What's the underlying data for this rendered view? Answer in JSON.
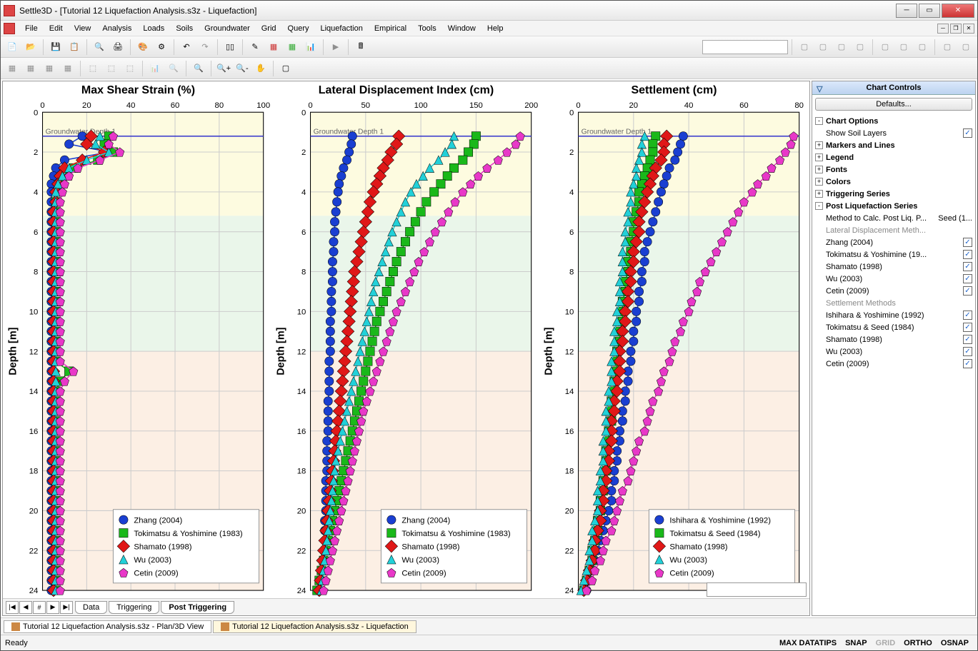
{
  "window": {
    "title": "Settle3D - [Tutorial 12 Liquefaction Analysis.s3z - Liquefaction]"
  },
  "menu": [
    "File",
    "Edit",
    "View",
    "Analysis",
    "Loads",
    "Soils",
    "Groundwater",
    "Grid",
    "Query",
    "Liquefaction",
    "Empirical",
    "Tools",
    "Window",
    "Help"
  ],
  "tabs": {
    "items": [
      "Data",
      "Triggering",
      "Post Triggering"
    ],
    "active": 2
  },
  "doctabs": {
    "items": [
      "Tutorial 12 Liquefaction Analysis.s3z - Plan/3D View",
      "Tutorial 12 Liquefaction Analysis.s3z - Liquefaction"
    ],
    "active": 1
  },
  "status": {
    "ready": "Ready",
    "items": [
      "MAX DATATIPS",
      "SNAP",
      "GRID",
      "ORTHO",
      "OSNAP"
    ],
    "gray_index": 2
  },
  "side": {
    "title": "Chart Controls",
    "defaults": "Defaults...",
    "sections": [
      {
        "exp": "-",
        "label": "Chart Options",
        "bold": true
      },
      {
        "indent": 1,
        "label": "Show Soil Layers",
        "check": true
      },
      {
        "exp": "+",
        "label": "Markers and Lines",
        "bold": true
      },
      {
        "exp": "+",
        "label": "Legend",
        "bold": true
      },
      {
        "exp": "+",
        "label": "Fonts",
        "bold": true
      },
      {
        "exp": "+",
        "label": "Colors",
        "bold": true
      },
      {
        "exp": "+",
        "label": "Triggering Series",
        "bold": true
      },
      {
        "exp": "-",
        "label": "Post Liquefaction Series",
        "bold": true
      },
      {
        "indent": 1,
        "label": "Method to Calc. Post Liq. P...",
        "value": "Seed (1..."
      },
      {
        "indent": 1,
        "label": "Lateral Displacement Meth...",
        "gray": true
      },
      {
        "indent": 1,
        "label": "Zhang (2004)",
        "check": true
      },
      {
        "indent": 1,
        "label": "Tokimatsu & Yoshimine (19...",
        "check": true
      },
      {
        "indent": 1,
        "label": "Shamato (1998)",
        "check": true
      },
      {
        "indent": 1,
        "label": "Wu (2003)",
        "check": true
      },
      {
        "indent": 1,
        "label": "Cetin (2009)",
        "check": true
      },
      {
        "indent": 1,
        "label": "Settlement Methods",
        "gray": true
      },
      {
        "indent": 1,
        "label": "Ishihara & Yoshimine (1992)",
        "check": true
      },
      {
        "indent": 1,
        "label": "Tokimatsu & Seed (1984)",
        "check": true
      },
      {
        "indent": 1,
        "label": "Shamato (1998)",
        "check": true
      },
      {
        "indent": 1,
        "label": "Wu (2003)",
        "check": true
      },
      {
        "indent": 1,
        "label": "Cetin (2009)",
        "check": true
      }
    ]
  },
  "chart_common": {
    "ylabel": "Depth [m]",
    "y_min": 0,
    "y_max": 24,
    "y_tick": 2,
    "gw_label": "Groundwater Depth 1",
    "gw_depth": 1.2,
    "soil_bands": [
      {
        "from": 0,
        "to": 5.2,
        "color": "#fdfbe0"
      },
      {
        "from": 5.2,
        "to": 12,
        "color": "#eaf6ea"
      },
      {
        "from": 12,
        "to": 24,
        "color": "#fcefe4"
      }
    ],
    "grid_color": "#cccccc",
    "axis_color": "#000000",
    "title_fontsize": 16,
    "label_fontsize": 12,
    "gw_line_color": "#3333cc"
  },
  "series_colors": {
    "zhang": "#1a3fd1",
    "tokimatsu": "#1ab81a",
    "shamato": "#e01818",
    "wu": "#22d0d8",
    "cetin": "#e838c8",
    "ishihara": "#1a3fd1"
  },
  "markers": {
    "zhang": "circle",
    "tokimatsu": "square",
    "shamato": "diamond",
    "wu": "triangle",
    "cetin": "pentagon",
    "ishihara": "circle"
  },
  "depths": [
    1.2,
    1.6,
    2.0,
    2.4,
    2.8,
    3.2,
    3.6,
    4.0,
    4.5,
    5.0,
    5.5,
    6.0,
    6.5,
    7.0,
    7.5,
    8.0,
    8.5,
    9.0,
    9.5,
    10.0,
    10.5,
    11.0,
    11.5,
    12.0,
    12.5,
    13.0,
    13.5,
    14.0,
    14.5,
    15.0,
    15.5,
    16.0,
    16.5,
    17.0,
    17.5,
    18.0,
    18.5,
    19.0,
    19.5,
    20.0,
    20.5,
    21.0,
    21.5,
    22.0,
    22.5,
    23.0,
    23.5,
    24.0
  ],
  "charts": [
    {
      "title": "Max Shear Strain (%)",
      "x_min": 0,
      "x_max": 100,
      "x_tick": 20,
      "legend": [
        {
          "key": "zhang",
          "label": "Zhang (2004)"
        },
        {
          "key": "tokimatsu",
          "label": "Tokimatsu & Yoshimine (1983)"
        },
        {
          "key": "shamato",
          "label": "Shamato (1998)"
        },
        {
          "key": "wu",
          "label": "Wu (2003)"
        },
        {
          "key": "cetin",
          "label": "Cetin (2009)"
        }
      ],
      "series": {
        "zhang": [
          18,
          12,
          30,
          10,
          6,
          5,
          4,
          4,
          4,
          4,
          4,
          4,
          4,
          4,
          4,
          4,
          4,
          4,
          4,
          4,
          4,
          4,
          4,
          4,
          4,
          4,
          4,
          4,
          4,
          4,
          4,
          4,
          4,
          4,
          4,
          4,
          4,
          4,
          4,
          4,
          4,
          4,
          4,
          4,
          4,
          4,
          4,
          4
        ],
        "tokimatsu": [
          30,
          28,
          32,
          25,
          14,
          10,
          8,
          7,
          6,
          6,
          6,
          6,
          6,
          6,
          6,
          6,
          6,
          6,
          6,
          6,
          6,
          6,
          6,
          6,
          6,
          12,
          8,
          6,
          6,
          6,
          6,
          6,
          6,
          6,
          6,
          6,
          6,
          6,
          6,
          6,
          6,
          6,
          6,
          6,
          6,
          6,
          6,
          6
        ],
        "shamato": [
          22,
          20,
          28,
          18,
          10,
          8,
          7,
          6,
          6,
          5,
          5,
          5,
          5,
          5,
          5,
          5,
          5,
          5,
          5,
          5,
          5,
          5,
          5,
          5,
          5,
          5,
          5,
          5,
          5,
          5,
          5,
          5,
          5,
          5,
          5,
          5,
          5,
          5,
          5,
          5,
          5,
          5,
          5,
          5,
          5,
          5,
          5,
          5
        ],
        "wu": [
          26,
          24,
          30,
          20,
          12,
          9,
          7,
          6,
          6,
          6,
          6,
          6,
          6,
          6,
          6,
          6,
          6,
          6,
          6,
          6,
          6,
          6,
          6,
          6,
          6,
          6,
          6,
          6,
          6,
          6,
          6,
          6,
          6,
          6,
          6,
          6,
          6,
          6,
          6,
          6,
          6,
          6,
          6,
          6,
          6,
          6,
          6,
          6
        ],
        "cetin": [
          32,
          30,
          35,
          26,
          16,
          12,
          10,
          9,
          8,
          8,
          8,
          8,
          8,
          8,
          8,
          8,
          8,
          8,
          8,
          8,
          8,
          8,
          8,
          8,
          8,
          14,
          10,
          8,
          8,
          8,
          8,
          8,
          8,
          8,
          8,
          8,
          8,
          8,
          8,
          8,
          8,
          8,
          8,
          8,
          8,
          8,
          8,
          8
        ]
      }
    },
    {
      "title": "Lateral Displacement Index (cm)",
      "x_min": 0,
      "x_max": 200,
      "x_tick": 50,
      "legend": [
        {
          "key": "zhang",
          "label": "Zhang (2004)"
        },
        {
          "key": "tokimatsu",
          "label": "Tokimatsu & Yoshimine (1983)"
        },
        {
          "key": "shamato",
          "label": "Shamato (1998)"
        },
        {
          "key": "wu",
          "label": "Wu (2003)"
        },
        {
          "key": "cetin",
          "label": "Cetin (2009)"
        }
      ],
      "series": {
        "zhang": [
          38,
          37,
          35,
          33,
          30,
          28,
          26,
          25,
          24,
          23,
          22,
          22,
          21,
          21,
          20,
          20,
          20,
          19,
          19,
          19,
          18,
          18,
          18,
          18,
          17,
          17,
          17,
          17,
          16,
          16,
          16,
          16,
          15,
          15,
          15,
          15,
          14,
          14,
          14,
          14,
          13,
          13,
          13,
          12,
          12,
          11,
          10,
          8
        ],
        "tokimatsu": [
          150,
          148,
          143,
          138,
          130,
          124,
          118,
          112,
          105,
          100,
          95,
          90,
          86,
          82,
          78,
          75,
          72,
          69,
          66,
          63,
          60,
          58,
          56,
          54,
          52,
          50,
          48,
          46,
          44,
          42,
          40,
          38,
          36,
          34,
          32,
          30,
          28,
          26,
          24,
          22,
          20,
          18,
          16,
          14,
          12,
          10,
          8,
          6
        ],
        "shamato": [
          80,
          78,
          73,
          70,
          66,
          63,
          60,
          57,
          54,
          52,
          50,
          48,
          46,
          44,
          42,
          40,
          39,
          38,
          37,
          36,
          35,
          34,
          33,
          32,
          31,
          30,
          29,
          28,
          27,
          26,
          25,
          24,
          23,
          22,
          21,
          20,
          19,
          18,
          17,
          16,
          15,
          14,
          13,
          12,
          11,
          10,
          9,
          8
        ],
        "wu": [
          130,
          128,
          122,
          116,
          108,
          102,
          96,
          91,
          86,
          82,
          78,
          74,
          71,
          68,
          65,
          62,
          59,
          57,
          55,
          53,
          51,
          49,
          47,
          45,
          43,
          41,
          39,
          37,
          35,
          33,
          31,
          29,
          27,
          25,
          23,
          22,
          21,
          20,
          19,
          18,
          17,
          16,
          15,
          14,
          13,
          12,
          11,
          10
        ],
        "cetin": [
          190,
          186,
          178,
          170,
          160,
          152,
          145,
          138,
          131,
          125,
          119,
          113,
          108,
          103,
          98,
          94,
          90,
          86,
          82,
          78,
          75,
          72,
          69,
          66,
          63,
          60,
          57,
          54,
          51,
          48,
          46,
          44,
          42,
          40,
          38,
          36,
          34,
          32,
          30,
          28,
          26,
          24,
          22,
          20,
          18,
          16,
          14,
          12
        ]
      }
    },
    {
      "title": "Settlement (cm)",
      "x_min": 0,
      "x_max": 80,
      "x_tick": 20,
      "legend": [
        {
          "key": "ishihara",
          "label": "Ishihara & Yoshimine (1992)"
        },
        {
          "key": "tokimatsu",
          "label": "Tokimatsu & Seed (1984)"
        },
        {
          "key": "shamato",
          "label": "Shamato (1998)"
        },
        {
          "key": "wu",
          "label": "Wu (2003)"
        },
        {
          "key": "cetin",
          "label": "Cetin (2009)"
        }
      ],
      "series": {
        "ishihara": [
          38,
          37,
          36,
          35,
          33,
          32,
          31,
          30,
          29,
          28,
          27,
          26,
          25,
          24,
          24,
          23,
          23,
          22,
          22,
          21,
          21,
          20,
          20,
          19,
          19,
          18,
          18,
          17,
          17,
          16,
          16,
          15,
          15,
          14,
          14,
          13,
          13,
          12,
          12,
          11,
          10,
          9,
          8,
          7,
          6,
          5,
          4,
          3
        ],
        "tokimatsu": [
          28,
          27,
          27,
          26,
          25,
          24,
          23,
          22,
          22,
          21,
          20,
          20,
          19,
          19,
          18,
          18,
          17,
          17,
          16,
          16,
          16,
          15,
          15,
          14,
          14,
          14,
          13,
          13,
          12,
          12,
          12,
          11,
          11,
          10,
          10,
          10,
          9,
          9,
          8,
          8,
          7,
          7,
          6,
          5,
          5,
          4,
          3,
          2
        ],
        "shamato": [
          32,
          31,
          31,
          30,
          28,
          27,
          26,
          25,
          24,
          23,
          22,
          22,
          21,
          20,
          20,
          19,
          19,
          18,
          18,
          17,
          17,
          16,
          16,
          15,
          15,
          15,
          14,
          14,
          13,
          13,
          12,
          12,
          12,
          11,
          11,
          10,
          10,
          9,
          9,
          8,
          8,
          7,
          6,
          6,
          5,
          4,
          3,
          2
        ],
        "wu": [
          24,
          23,
          23,
          22,
          21,
          21,
          20,
          19,
          19,
          18,
          18,
          17,
          17,
          16,
          16,
          16,
          15,
          15,
          15,
          14,
          14,
          13,
          13,
          13,
          12,
          12,
          12,
          11,
          11,
          10,
          10,
          10,
          9,
          9,
          9,
          8,
          8,
          7,
          7,
          7,
          6,
          5,
          5,
          4,
          4,
          3,
          2,
          1
        ],
        "cetin": [
          78,
          77,
          75,
          73,
          70,
          68,
          65,
          63,
          60,
          58,
          56,
          54,
          52,
          50,
          48,
          46,
          44,
          43,
          41,
          40,
          38,
          37,
          35,
          34,
          33,
          31,
          30,
          29,
          27,
          26,
          25,
          24,
          22,
          21,
          20,
          19,
          18,
          16,
          15,
          14,
          13,
          12,
          10,
          9,
          8,
          6,
          5,
          3
        ]
      }
    }
  ]
}
